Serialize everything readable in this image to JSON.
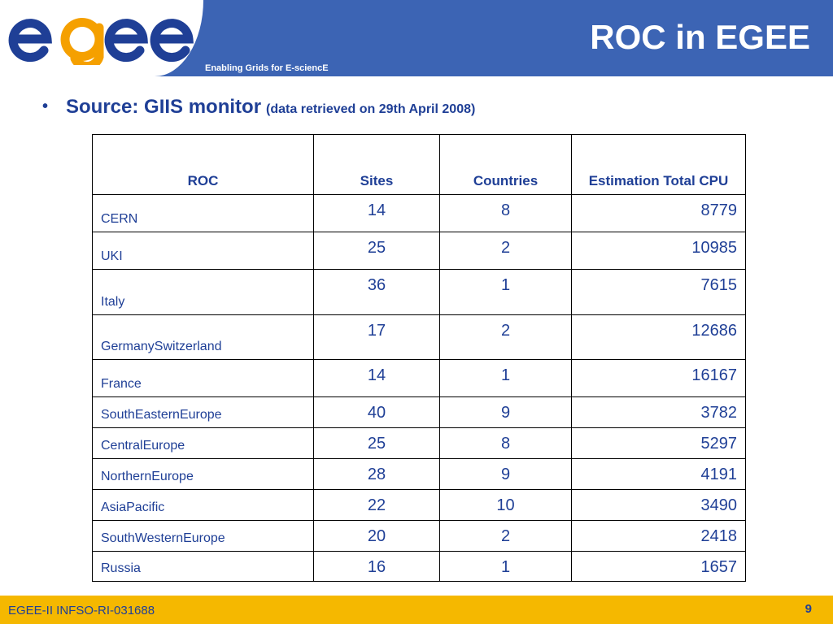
{
  "header": {
    "logo_text": "egee",
    "tagline": "Enabling Grids for E-sciencE",
    "title": "ROC in EGEE",
    "colors": {
      "band": "#3c64b4",
      "logo_blue": "#1f3f96",
      "logo_orange": "#f5a000"
    }
  },
  "bullet": {
    "main": "Source: GIIS monitor",
    "sub": "(data retrieved on 29th April 2008)"
  },
  "table": {
    "headers": [
      "ROC",
      "Sites",
      "Countries",
      "Estimation Total CPU"
    ],
    "rows": [
      {
        "roc": "CERN",
        "sites": "14",
        "countries": "8",
        "cpu": "8779"
      },
      {
        "roc": "UKI",
        "sites": "25",
        "countries": "2",
        "cpu": "10985"
      },
      {
        "roc": "Italy",
        "sites": "36",
        "countries": "1",
        "cpu": "7615"
      },
      {
        "roc": "GermanySwitzerland",
        "sites": "17",
        "countries": "2",
        "cpu": "12686"
      },
      {
        "roc": "France",
        "sites": "14",
        "countries": "1",
        "cpu": "16167"
      },
      {
        "roc": "SouthEasternEurope",
        "sites": "40",
        "countries": "9",
        "cpu": "3782"
      },
      {
        "roc": "CentralEurope",
        "sites": "25",
        "countries": "8",
        "cpu": "5297"
      },
      {
        "roc": "NorthernEurope",
        "sites": "28",
        "countries": "9",
        "cpu": "4191"
      },
      {
        "roc": "AsiaPacific",
        "sites": "22",
        "countries": "10",
        "cpu": "3490"
      },
      {
        "roc": "SouthWesternEurope",
        "sites": "20",
        "countries": "2",
        "cpu": "2418"
      },
      {
        "roc": "Russia",
        "sites": "16",
        "countries": "1",
        "cpu": "1657"
      }
    ]
  },
  "footer": {
    "left": "EGEE-II INFSO-RI-031688",
    "page_number": "9",
    "color": "#f5b800"
  }
}
